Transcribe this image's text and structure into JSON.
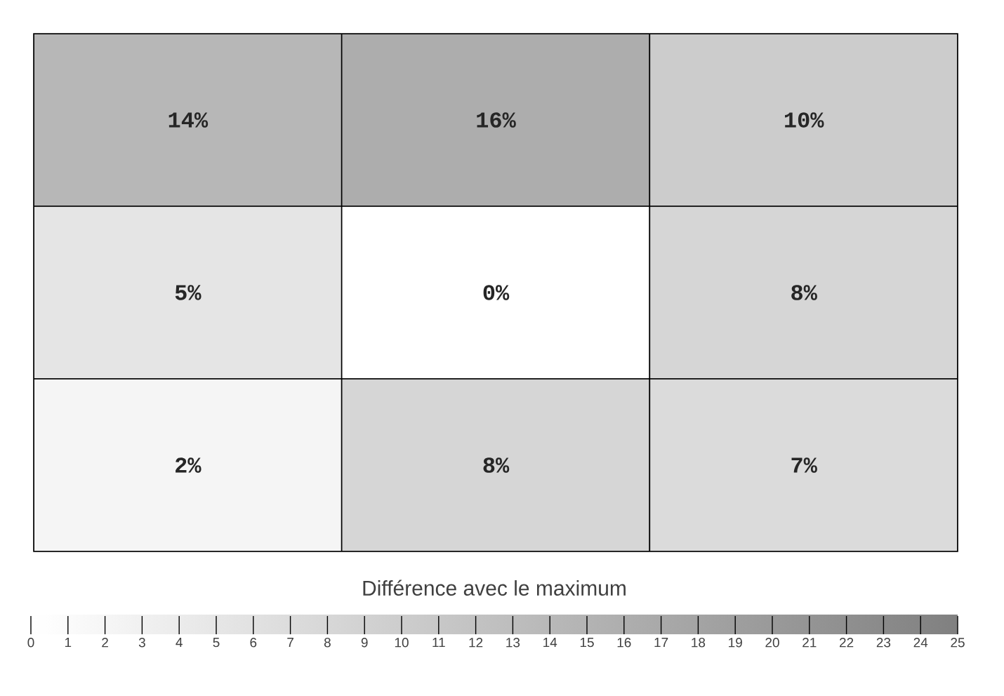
{
  "chart_data": {
    "type": "heatmap",
    "categories": [
      null,
      null,
      null
    ],
    "y_categories": [
      null,
      null,
      null
    ],
    "cells": [
      [
        14,
        16,
        10
      ],
      [
        5,
        0,
        8
      ],
      [
        2,
        8,
        7
      ]
    ],
    "cell_labels": [
      [
        "14%",
        "16%",
        "10%"
      ],
      [
        "5%",
        "0%",
        "8%"
      ],
      [
        "2%",
        "8%",
        "7%"
      ]
    ],
    "clabel": "Différence avec le maximum",
    "clim": [
      0,
      25
    ],
    "cticks": [
      0,
      1,
      2,
      3,
      4,
      5,
      6,
      7,
      8,
      9,
      10,
      11,
      12,
      13,
      14,
      15,
      16,
      17,
      18,
      19,
      20,
      21,
      22,
      23,
      24,
      25
    ]
  }
}
